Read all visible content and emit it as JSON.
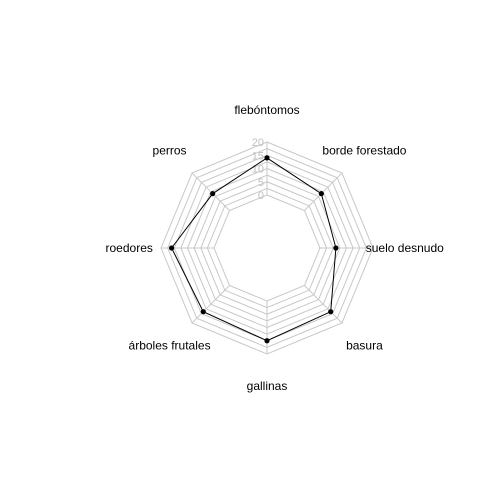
{
  "chart_data": {
    "type": "radar",
    "title": "",
    "axes": [
      "flebóntomos",
      "borde forestado",
      "suelo desnudo",
      "basura",
      "gallinas",
      "árboles frutales",
      "roedores",
      "perros"
    ],
    "values": [
      14,
      9,
      6,
      14,
      15,
      14,
      16,
      9
    ],
    "rmax": 20,
    "ticks": [
      0,
      5,
      10,
      15,
      20
    ],
    "grid": true,
    "colors": {
      "grid": "#c8c8c8",
      "series": "#000000",
      "tick_label": "#bfbfbf"
    }
  }
}
